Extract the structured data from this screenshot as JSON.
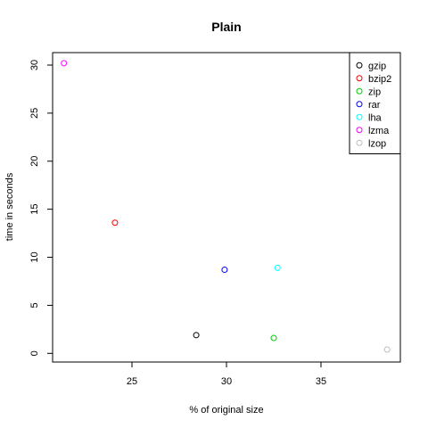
{
  "chart_data": {
    "type": "scatter",
    "title": "Plain",
    "xlabel": "% of original size",
    "ylabel": "time in seconds",
    "xlim": [
      20.8,
      39.2
    ],
    "ylim": [
      -0.9,
      31.3
    ],
    "xticks": [
      25,
      30,
      35
    ],
    "yticks": [
      0,
      5,
      10,
      15,
      20,
      25,
      30
    ],
    "legend_position": "top-right",
    "series": [
      {
        "name": "gzip",
        "color": "#000000",
        "x": 28.4,
        "y": 1.9
      },
      {
        "name": "bzip2",
        "color": "#ff0000",
        "x": 24.1,
        "y": 13.6
      },
      {
        "name": "zip",
        "color": "#00cd00",
        "x": 32.5,
        "y": 1.6
      },
      {
        "name": "rar",
        "color": "#0000ff",
        "x": 29.9,
        "y": 8.7
      },
      {
        "name": "lha",
        "color": "#00ffff",
        "x": 32.7,
        "y": 8.9
      },
      {
        "name": "lzma",
        "color": "#ff00ff",
        "x": 21.4,
        "y": 30.2
      },
      {
        "name": "lzop",
        "color": "#bebebe",
        "x": 38.5,
        "y": 0.4
      }
    ]
  }
}
